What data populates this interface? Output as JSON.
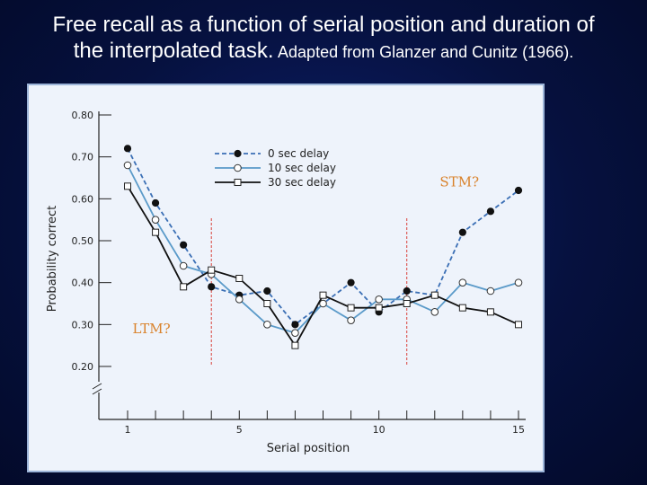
{
  "slide": {
    "title_line1": "Free recall as a function of serial position and duration of",
    "title_line2_main": "the interpolated task.",
    "title_line2_small": "Adapted from Glanzer and Cunitz (1966)."
  },
  "colors": {
    "background": "#06113f",
    "panel": "#eef3fb",
    "series_0": "#3b6fb5",
    "series_10": "#5a9ac9",
    "series_30": "#111111",
    "divider": "#d9413a",
    "annotation": "#d9822b"
  },
  "chart_data": {
    "type": "line",
    "title": "",
    "xlabel": "Serial position",
    "ylabel": "Probability correct",
    "x": [
      1,
      2,
      3,
      4,
      5,
      6,
      7,
      8,
      9,
      10,
      11,
      12,
      13,
      14,
      15
    ],
    "xticks": [
      1,
      5,
      10,
      15
    ],
    "yticks": [
      0.2,
      0.3,
      0.4,
      0.5,
      0.6,
      0.7,
      0.8
    ],
    "ytick_labels": [
      "0.20",
      "0.30",
      "0.40",
      "0.50",
      "0.60",
      "0.70",
      "0.80"
    ],
    "ylim": [
      0.2,
      0.8
    ],
    "axis_break": true,
    "series": [
      {
        "name": "0 sec delay",
        "style": "dashed",
        "marker": "filled-circle",
        "values": [
          0.72,
          0.59,
          0.49,
          0.39,
          0.37,
          0.38,
          0.3,
          0.35,
          0.4,
          0.33,
          0.38,
          0.37,
          0.52,
          0.57,
          0.62
        ]
      },
      {
        "name": "10 sec delay",
        "style": "solid",
        "marker": "open-circle",
        "values": [
          0.68,
          0.55,
          0.44,
          0.42,
          0.36,
          0.3,
          0.28,
          0.35,
          0.31,
          0.36,
          0.36,
          0.33,
          0.4,
          0.38,
          0.4
        ]
      },
      {
        "name": "30 sec delay",
        "style": "solid",
        "marker": "open-square",
        "values": [
          0.63,
          0.52,
          0.39,
          0.43,
          0.41,
          0.35,
          0.25,
          0.37,
          0.34,
          0.34,
          0.35,
          0.37,
          0.34,
          0.33,
          0.3
        ]
      }
    ],
    "dividers_at_x": [
      4,
      11
    ],
    "annotations": [
      {
        "text": "LTM?",
        "x": 1.5,
        "y": 0.29
      },
      {
        "text": "STM?",
        "x": 12.5,
        "y": 0.64
      }
    ],
    "legend_position": "top-center"
  }
}
